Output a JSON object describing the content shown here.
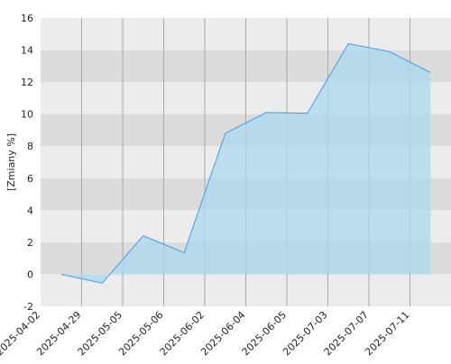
{
  "chart_data": {
    "type": "area",
    "y_label": "[Zmiany %]",
    "categories": [
      "2025-04-02",
      "2025-04-29",
      "2025-05-05",
      "2025-05-06",
      "2025-06-02",
      "2025-06-04",
      "2025-06-05",
      "2025-07-03",
      "2025-07-07",
      "2025-07-11"
    ],
    "values": [
      0,
      -0.55,
      2.4,
      1.35,
      8.8,
      10.1,
      10.05,
      14.4,
      13.9,
      12.6
    ],
    "color": "#5aa5e6",
    "fill": "#a9d9ee",
    "ylim": [
      -2,
      16
    ],
    "yticks": [
      -2,
      0,
      2,
      4,
      6,
      8,
      10,
      12,
      14,
      16
    ],
    "grid": true
  }
}
